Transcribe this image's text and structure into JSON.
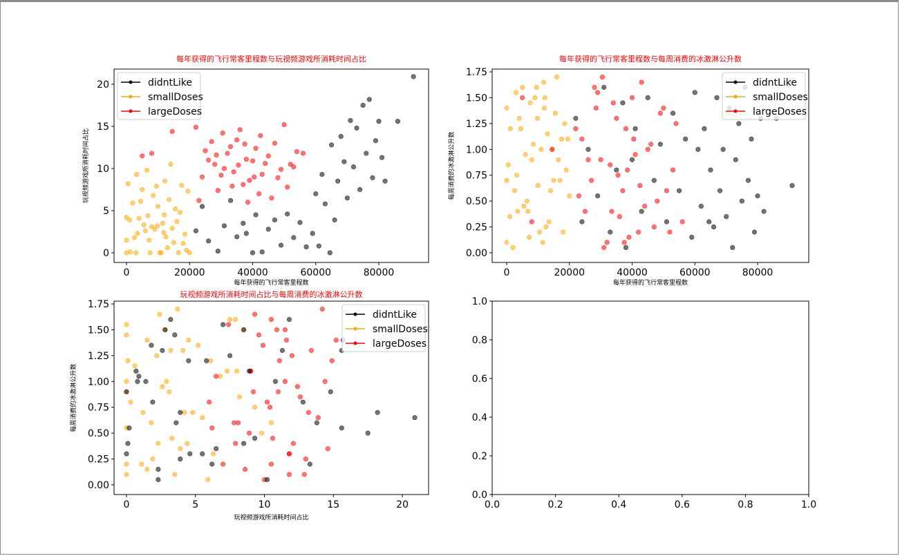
{
  "legend_labels": [
    "didntLike",
    "smallDoses",
    "largeDoses"
  ],
  "colors": {
    "didntLike": "#000000",
    "smallDoses": "#ffa500",
    "largeDoses": "#ff0000",
    "title": "#ff0000"
  },
  "features": [
    "每年获得的飞行常客里程数",
    "玩视频游戏所消耗时间占比",
    "每周消费的冰激淋公升数"
  ],
  "chart_data": [
    {
      "type": "scatter",
      "title": "每年获得的飞行常客里程数与玩视频游戏所消耗时间占比",
      "xlabel": "每年获得的飞行常客里程数",
      "ylabel": "玩视频游戏所消耗时间占比",
      "x_feature": 0,
      "y_feature": 1,
      "xlim": [
        -3945,
        95780
      ],
      "ylim": [
        -1.15,
        21.8
      ],
      "xticks": [
        "0",
        "20000",
        "40000",
        "60000",
        "80000"
      ],
      "yticks": [
        "0",
        "5",
        "10",
        "15",
        "20"
      ],
      "legend": "upper-left"
    },
    {
      "type": "scatter",
      "title": "每年获得的飞行常客里程数与每周消费的冰激淋公升数",
      "xlabel": "每年获得的飞行常客里程数",
      "ylabel": "每周消费的冰激淋公升数",
      "x_feature": 0,
      "y_feature": 2,
      "xlim": [
        -4628,
        96300
      ],
      "ylim": [
        -0.094,
        1.777
      ],
      "xticks": [
        "0",
        "20000",
        "40000",
        "60000",
        "80000"
      ],
      "yticks": [
        "0.00",
        "0.25",
        "0.50",
        "0.75",
        "1.00",
        "1.25",
        "1.50",
        "1.75"
      ],
      "legend": "upper-right"
    },
    {
      "type": "scatter",
      "title": "玩视频游戏所消耗时间占比与每周消费的冰激淋公升数",
      "xlabel": "玩视频游戏所消耗时间占比",
      "ylabel": "每周消费的冰激淋公升数",
      "x_feature": 1,
      "y_feature": 2,
      "xlim": [
        -0.9,
        21.9
      ],
      "ylim": [
        -0.094,
        1.777
      ],
      "xticks": [
        "0",
        "5",
        "10",
        "15",
        "20"
      ],
      "yticks": [
        "0.00",
        "0.25",
        "0.50",
        "0.75",
        "1.00",
        "1.25",
        "1.50",
        "1.75"
      ],
      "legend": "upper-right"
    },
    {
      "type": "empty",
      "title": "",
      "xlim": [
        0,
        1
      ],
      "ylim": [
        0,
        1
      ],
      "xticks": [
        "0.0",
        "0.2",
        "0.4",
        "0.6",
        "0.8",
        "1.0"
      ],
      "yticks": [
        "0.0",
        "0.2",
        "0.4",
        "0.6",
        "0.8",
        "1.0"
      ]
    }
  ],
  "points": {
    "smallDoses": [
      [
        1200,
        0.1,
        1.2
      ],
      [
        3500,
        2.3,
        0.4
      ],
      [
        5000,
        7.5,
        1.6
      ],
      [
        8000,
        3.1,
        0.9
      ],
      [
        10500,
        0,
        0.2
      ],
      [
        12000,
        4.5,
        1.4
      ],
      [
        15000,
        1.2,
        0.7
      ],
      [
        17500,
        8,
        1.1
      ],
      [
        2000,
        5.9,
        0.05
      ],
      [
        6500,
        9.8,
        0.5
      ],
      [
        9000,
        2.8,
        1.5
      ],
      [
        11000,
        0,
        1.0
      ],
      [
        13500,
        6.3,
        0.3
      ],
      [
        16000,
        3.7,
        1.7
      ],
      [
        19000,
        0.3,
        0.8
      ],
      [
        4000,
        4.1,
        1.3
      ],
      [
        7200,
        1.5,
        0.15
      ],
      [
        14000,
        10.5,
        0.6
      ],
      [
        18500,
        2.2,
        1.25
      ],
      [
        500,
        8.2,
        0.85
      ],
      [
        3000,
        0,
        1.55
      ],
      [
        5500,
        3.3,
        0.45
      ],
      [
        8500,
        6.8,
        1.05
      ],
      [
        12500,
        1.9,
        0.25
      ],
      [
        15500,
        5.2,
        1.35
      ],
      [
        20000,
        0,
        0.55
      ],
      [
        6000,
        2.6,
        0.95
      ],
      [
        9500,
        7.9,
        1.6
      ],
      [
        11500,
        3.5,
        0.1
      ],
      [
        13000,
        0.6,
        1.15
      ],
      [
        17000,
        4.8,
        0.7
      ],
      [
        1000,
        3.9,
        0.35
      ],
      [
        7500,
        0,
        1.45
      ],
      [
        10000,
        5.5,
        0.65
      ],
      [
        14500,
        2.9,
        1.0
      ],
      [
        18000,
        1.1,
        0.2
      ],
      [
        4500,
        6.1,
        1.2
      ],
      [
        2500,
        1.8,
        0.6
      ],
      [
        9800,
        3.2,
        1.3
      ],
      [
        16500,
        0,
        0.9
      ],
      [
        12200,
        8.5,
        1.5
      ],
      [
        6800,
        4.4,
        0.4
      ],
      [
        19500,
        7.3,
        1.1
      ],
      [
        3200,
        9.3,
        0.75
      ],
      [
        11800,
        2.4,
        1.65
      ],
      [
        0,
        0,
        0.1
      ],
      [
        0,
        1.5,
        1.4
      ],
      [
        0,
        4.2,
        0.7
      ]
    ],
    "largeDoses": [
      [
        22000,
        14.9,
        1.2
      ],
      [
        25000,
        12.1,
        0.4
      ],
      [
        28000,
        10.5,
        1.6
      ],
      [
        30000,
        9.2,
        0.9
      ],
      [
        32000,
        11.8,
        0.1
      ],
      [
        35000,
        13.4,
        1.3
      ],
      [
        37000,
        8.1,
        0.6
      ],
      [
        40000,
        10.9,
        1.5
      ],
      [
        42000,
        7.0,
        0.2
      ],
      [
        45000,
        11.5,
        1.0
      ],
      [
        48000,
        8.9,
        0.5
      ],
      [
        50000,
        15.2,
        1.4
      ],
      [
        53000,
        10.2,
        0.8
      ],
      [
        56000,
        11.8,
        0.3
      ],
      [
        24000,
        9.0,
        1.1
      ],
      [
        27000,
        13.2,
        0.7
      ],
      [
        29000,
        7.4,
        1.55
      ],
      [
        31000,
        10.0,
        0.05
      ],
      [
        33000,
        12.6,
        0.85
      ],
      [
        34000,
        9.6,
        1.45
      ],
      [
        36000,
        14.6,
        0.35
      ],
      [
        38000,
        11.1,
        1.2
      ],
      [
        39000,
        8.6,
        0.15
      ],
      [
        41000,
        12.4,
        0.95
      ],
      [
        43000,
        9.3,
        1.65
      ],
      [
        44000,
        10.6,
        0.45
      ],
      [
        46000,
        6.5,
        1.05
      ],
      [
        47000,
        13.0,
        0.25
      ],
      [
        49000,
        9.9,
        1.35
      ],
      [
        51000,
        7.8,
        0.6
      ],
      [
        54000,
        12.0,
        1.25
      ],
      [
        26000,
        11.0,
        0.9
      ],
      [
        23000,
        6.2,
        0.55
      ],
      [
        30500,
        14.2,
        1.7
      ],
      [
        35500,
        10.4,
        0.75
      ],
      [
        37500,
        12.9,
        0.1
      ],
      [
        40500,
        9.0,
        1.1
      ],
      [
        33500,
        7.9,
        0.4
      ],
      [
        28500,
        11.6,
        1.4
      ],
      [
        42500,
        13.9,
        0.65
      ],
      [
        14500,
        14.4,
        1.0
      ],
      [
        8000,
        11.8,
        0.3
      ],
      [
        5000,
        11.5,
        1.5
      ],
      [
        52000,
        10.5,
        0.2
      ],
      [
        38500,
        6.0,
        0.8
      ]
    ],
    "didntLike": [
      [
        22000,
        2.6,
        1.3
      ],
      [
        24000,
        5.5,
        0.3
      ],
      [
        26000,
        1.4,
        1.0
      ],
      [
        29000,
        0.2,
        0.55
      ],
      [
        31000,
        3.2,
        1.6
      ],
      [
        33000,
        6.2,
        0.2
      ],
      [
        35000,
        1.9,
        0.8
      ],
      [
        37000,
        3.5,
        1.45
      ],
      [
        38000,
        2.3,
        0.05
      ],
      [
        40000,
        0,
        0.9
      ],
      [
        41000,
        4.5,
        1.2
      ],
      [
        43000,
        0.1,
        0.4
      ],
      [
        45000,
        2.8,
        1.5
      ],
      [
        47000,
        3.9,
        0.7
      ],
      [
        49000,
        0.9,
        1.05
      ],
      [
        51000,
        4.6,
        0.3
      ],
      [
        53000,
        1.8,
        1.35
      ],
      [
        55000,
        3.6,
        0.6
      ],
      [
        57000,
        0.7,
        1.1
      ],
      [
        59000,
        2.3,
        0.15
      ],
      [
        60000,
        7.0,
        1.55
      ],
      [
        62000,
        9.3,
        0.45
      ],
      [
        63000,
        5.8,
        1.2
      ],
      [
        65000,
        12.8,
        0.8
      ],
      [
        66000,
        3.9,
        0.25
      ],
      [
        67000,
        8.5,
        1.5
      ],
      [
        68000,
        13.8,
        0.6
      ],
      [
        69000,
        10.8,
        1.0
      ],
      [
        70000,
        6.5,
        0.35
      ],
      [
        71000,
        15.7,
        1.4
      ],
      [
        72000,
        10.2,
        0.05
      ],
      [
        73000,
        14.8,
        0.9
      ],
      [
        74000,
        7.5,
        1.25
      ],
      [
        75000,
        17.5,
        0.5
      ],
      [
        76000,
        11.8,
        1.6
      ],
      [
        77000,
        18.2,
        0.7
      ],
      [
        78000,
        8.9,
        1.1
      ],
      [
        79000,
        13.3,
        0.2
      ],
      [
        80000,
        15.6,
        0.55
      ],
      [
        81000,
        11.3,
        1.3
      ],
      [
        82000,
        8.5,
        0.4
      ],
      [
        86000,
        15.6,
        1.3
      ],
      [
        91000,
        20.9,
        0.65
      ],
      [
        64500,
        0,
        0.3
      ],
      [
        61000,
        0.8,
        1.0
      ]
    ]
  }
}
